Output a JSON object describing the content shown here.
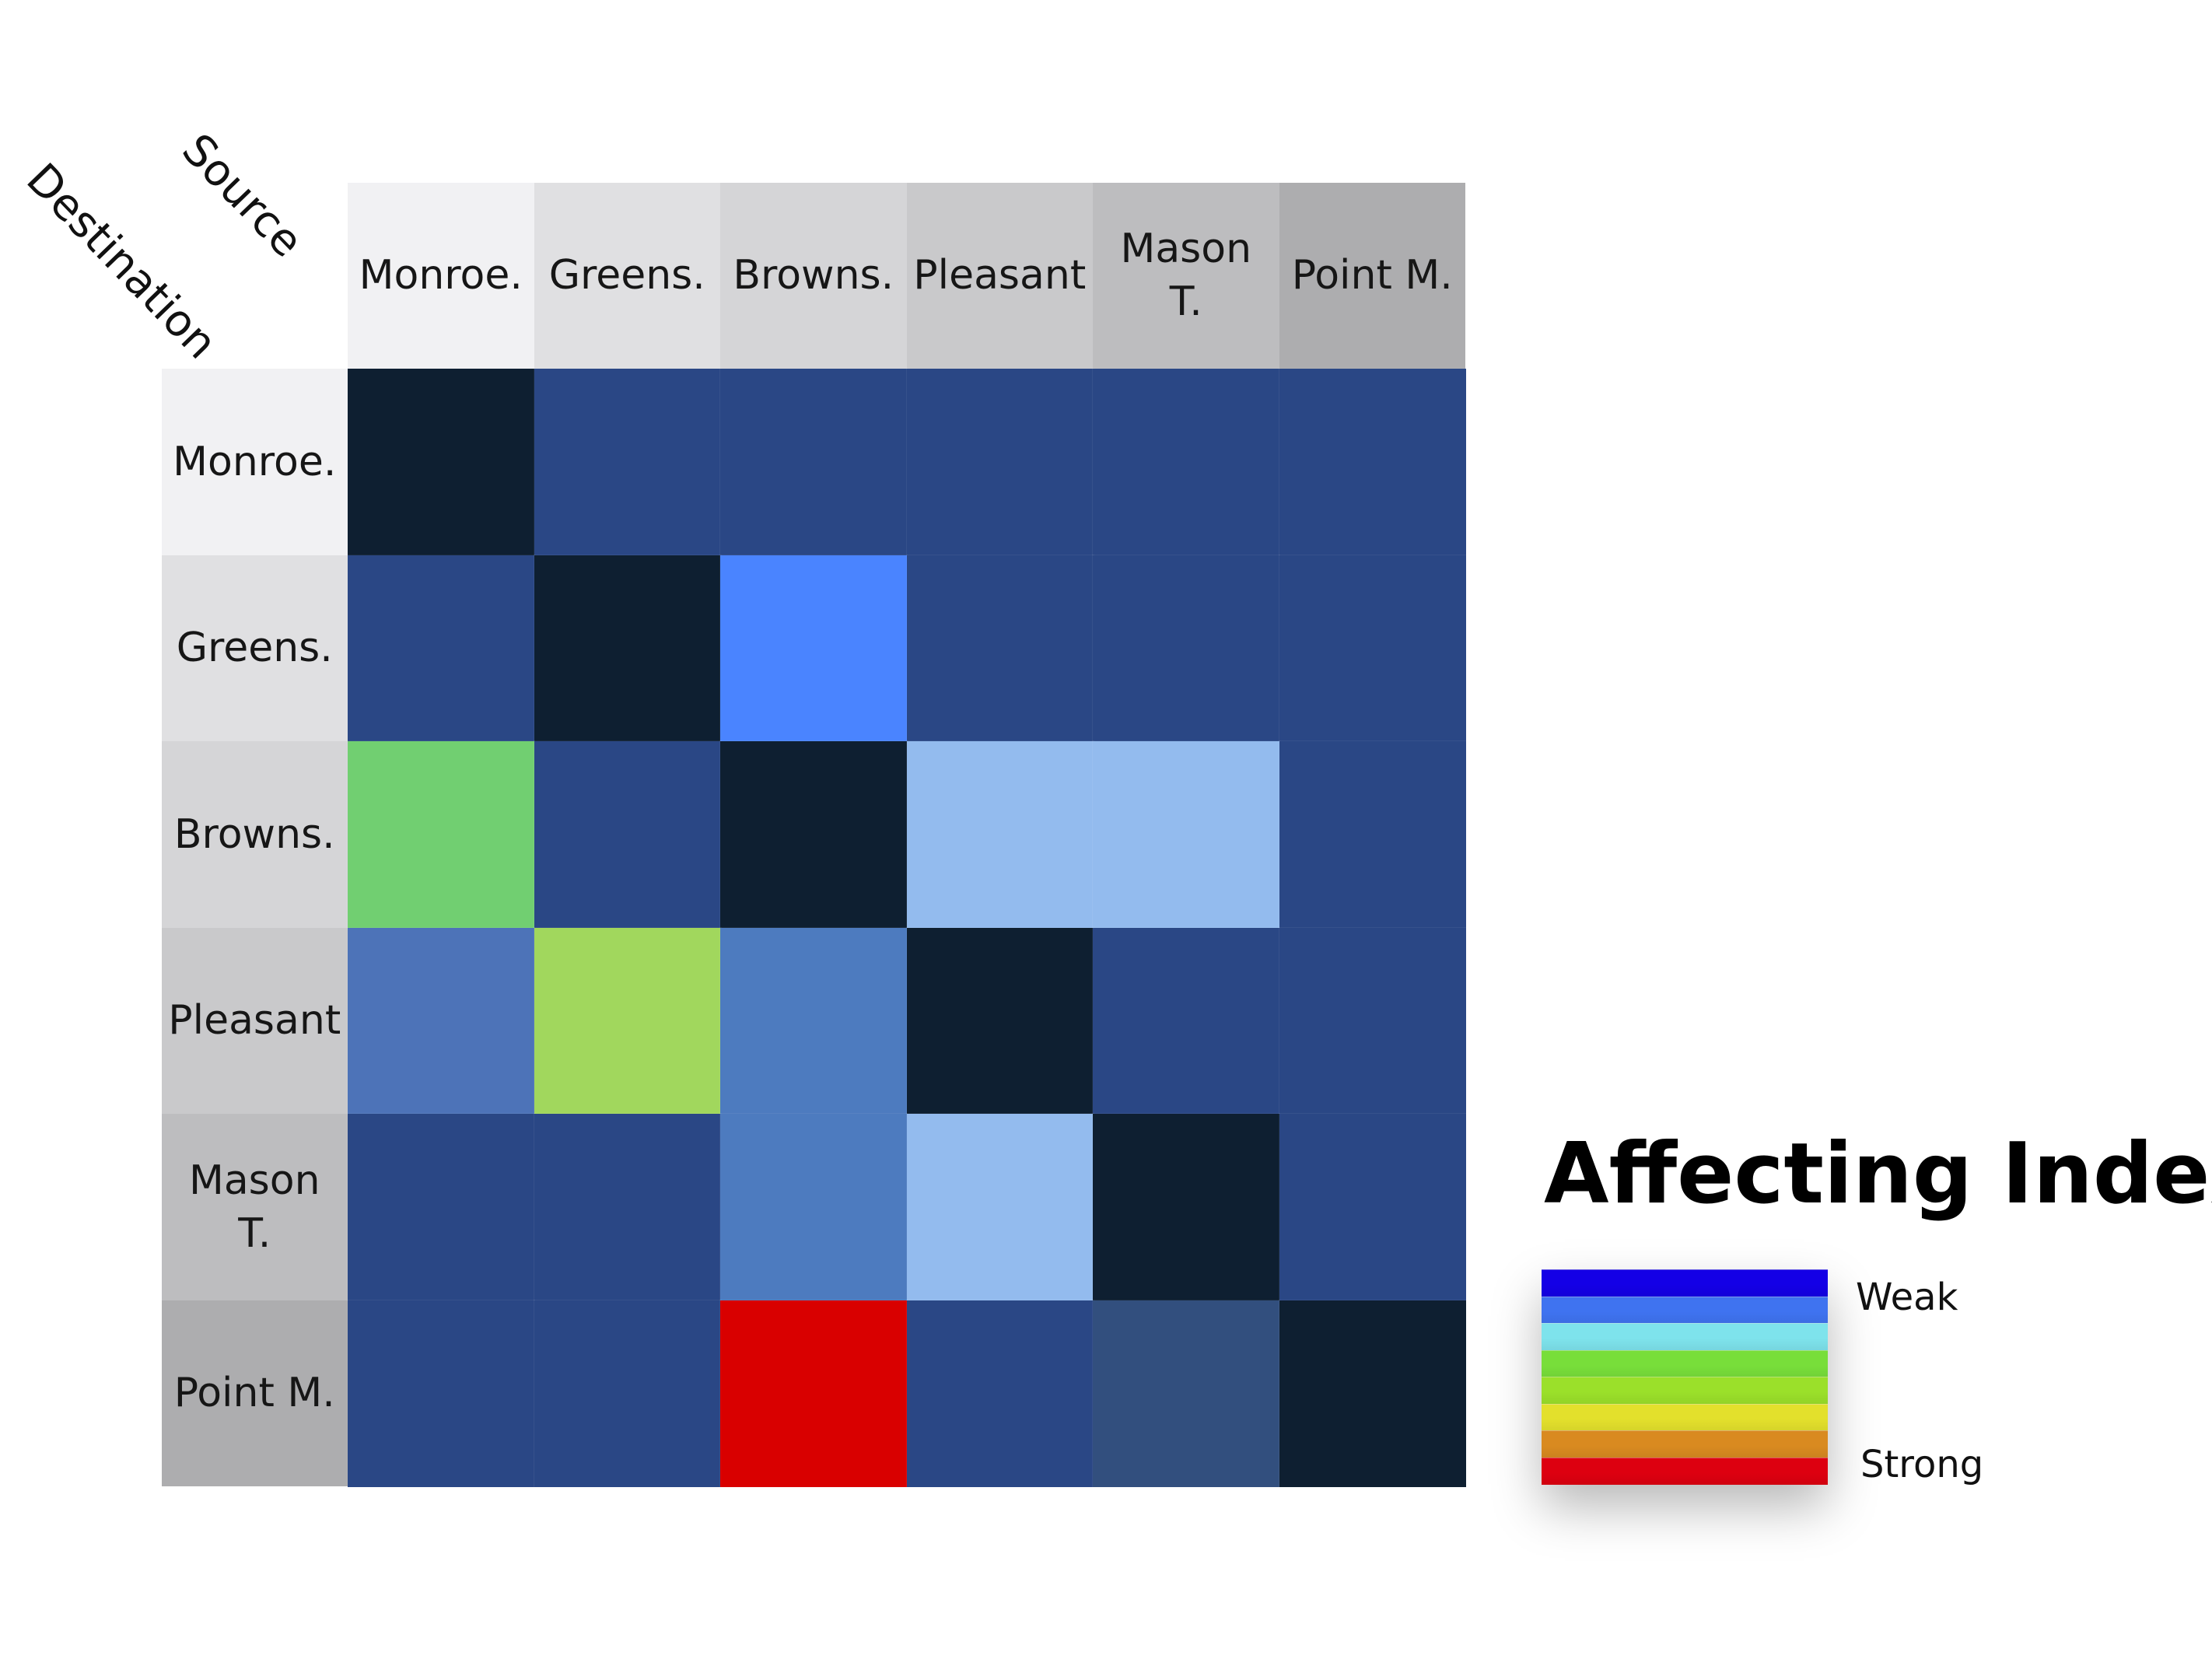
{
  "chart_data": {
    "type": "heatmap",
    "x_axis_title": "Source",
    "y_axis_title": "Destination",
    "columns": [
      "Monroe.",
      "Greens.",
      "Browns.",
      "Pleasant",
      "Mason\nT.",
      "Point M."
    ],
    "rows": [
      "Monroe.",
      "Greens.",
      "Browns.",
      "Pleasant",
      "Mason\nT.",
      "Point M."
    ],
    "header_colors": [
      "#f1f1f3",
      "#e0e0e2",
      "#d5d5d7",
      "#c9c9cb",
      "#bdbdbf",
      "#adadaf"
    ],
    "diagonal_color": "#0e1f31",
    "cell_colors": [
      [
        "#0e1f31",
        "#2a4785",
        "#2a4785",
        "#2a4785",
        "#2a4785",
        "#2a4785"
      ],
      [
        "#2a4785",
        "#0e1f31",
        "#4a84ff",
        "#2a4785",
        "#2a4785",
        "#2a4785"
      ],
      [
        "#71cf71",
        "#2a4785",
        "#0e1f31",
        "#93bbee",
        "#93bbee",
        "#2a4785"
      ],
      [
        "#4d73b8",
        "#a1d75d",
        "#4d7bbf",
        "#0e1f31",
        "#2a4785",
        "#2a4785"
      ],
      [
        "#2a4785",
        "#2a4785",
        "#4d7bbf",
        "#93bbee",
        "#0e1f31",
        "#2a4785"
      ],
      [
        "#2a4785",
        "#2a4785",
        "#d90000",
        "#2a4785",
        "#324f7e",
        "#0e1f31"
      ]
    ],
    "legend": {
      "title": "Affecting Index",
      "low_label": "Weak",
      "high_label": "Strong",
      "colors": [
        "#1400e6",
        "#3f73f0",
        "#7ee3ec",
        "#78de3a",
        "#9be02a",
        "#e3e02c",
        "#d98a20",
        "#dd0010"
      ]
    }
  }
}
